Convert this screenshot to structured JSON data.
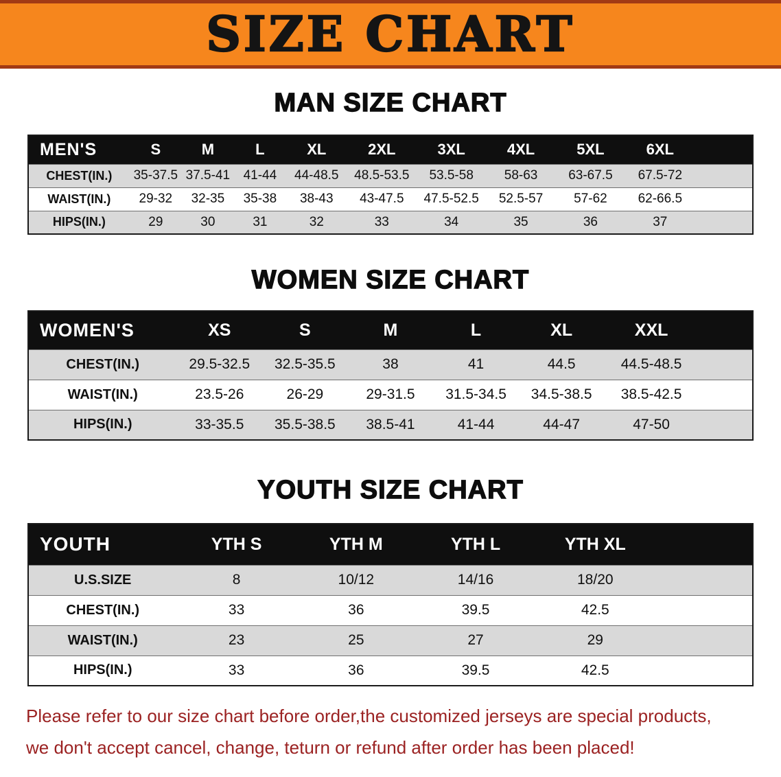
{
  "banner": {
    "title": "SIZE CHART"
  },
  "sections": {
    "men": {
      "heading": "MAN SIZE CHART",
      "table": {
        "header": [
          "MEN'S",
          "S",
          "M",
          "L",
          "XL",
          "2XL",
          "3XL",
          "4XL",
          "5XL",
          "6XL"
        ],
        "rows": [
          [
            "CHEST(IN.)",
            "35-37.5",
            "37.5-41",
            "41-44",
            "44-48.5",
            "48.5-53.5",
            "53.5-58",
            "58-63",
            "63-67.5",
            "67.5-72"
          ],
          [
            "WAIST(IN.)",
            "29-32",
            "32-35",
            "35-38",
            "38-43",
            "43-47.5",
            "47.5-52.5",
            "52.5-57",
            "57-62",
            "62-66.5"
          ],
          [
            "HIPS(IN.)",
            "29",
            "30",
            "31",
            "32",
            "33",
            "34",
            "35",
            "36",
            "37"
          ]
        ]
      }
    },
    "women": {
      "heading": "WOMEN SIZE CHART",
      "table": {
        "header": [
          "WOMEN'S",
          "XS",
          "S",
          "M",
          "L",
          "XL",
          "XXL"
        ],
        "rows": [
          [
            "CHEST(IN.)",
            "29.5-32.5",
            "32.5-35.5",
            "38",
            "41",
            "44.5",
            "44.5-48.5"
          ],
          [
            "WAIST(IN.)",
            "23.5-26",
            "26-29",
            "29-31.5",
            "31.5-34.5",
            "34.5-38.5",
            "38.5-42.5"
          ],
          [
            "HIPS(IN.)",
            "33-35.5",
            "35.5-38.5",
            "38.5-41",
            "41-44",
            "44-47",
            "47-50"
          ]
        ]
      }
    },
    "youth": {
      "heading": "YOUTH SIZE CHART",
      "table": {
        "header": [
          "YOUTH",
          "YTH S",
          "YTH M",
          "YTH L",
          "YTH XL"
        ],
        "rows": [
          [
            "U.S.SIZE",
            "8",
            "10/12",
            "14/16",
            "18/20"
          ],
          [
            "CHEST(IN.)",
            "33",
            "36",
            "39.5",
            "42.5"
          ],
          [
            "WAIST(IN.)",
            "23",
            "25",
            "27",
            "29"
          ],
          [
            "HIPS(IN.)",
            "33",
            "36",
            "39.5",
            "42.5"
          ]
        ]
      }
    }
  },
  "disclaimer": {
    "line1": "Please refer to our size chart before order,the customized jerseys are special products,",
    "line2": "we don't accept cancel, change, teturn or refund after order has been placed!"
  },
  "colors": {
    "banner_bg": "#f6861d",
    "banner_border": "#a23a14",
    "table_header_bg": "#0f0f0f",
    "row_alternate_bg": "#d9d9d9",
    "disclaimer_text": "#9b2222"
  }
}
